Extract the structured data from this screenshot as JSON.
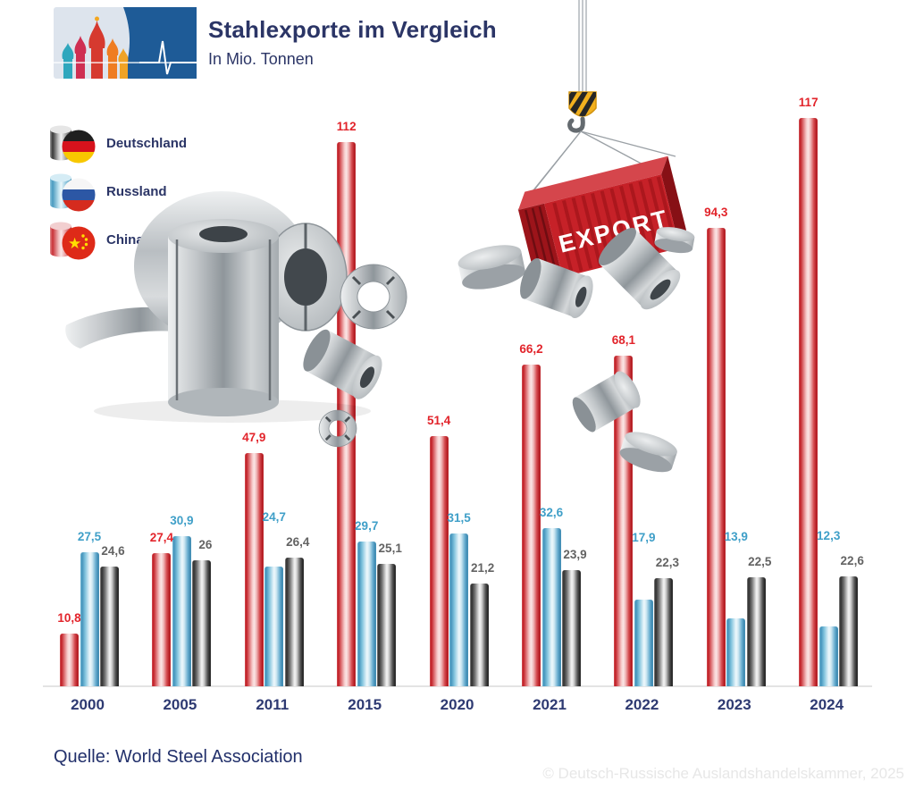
{
  "header": {
    "title": "Stahlexporte im Vergleich",
    "subtitle": "In Mio. Tonnen",
    "logo_icon": "st-basils-cathedral-with-pulse-line-icon"
  },
  "legend": {
    "items": [
      {
        "label": "Deutschland",
        "icon": "germany-flag-icon",
        "cylinder_color": "#58595b"
      },
      {
        "label": "Russland",
        "icon": "russia-flag-icon",
        "cylinder_color": "#45a1c8"
      },
      {
        "label": "China",
        "icon": "china-flag-icon",
        "cylinder_color": "#e2242b"
      }
    ]
  },
  "chart_data": {
    "type": "bar",
    "title": "Stahlexporte im Vergleich",
    "subtitle": "In Mio. Tonnen",
    "unit": "Mio. Tonnen",
    "categories": [
      "2000",
      "2005",
      "2011",
      "2015",
      "2020",
      "2021",
      "2022",
      "2023",
      "2024"
    ],
    "series": [
      {
        "name": "China",
        "key": "china",
        "color": "#e2242b",
        "values": [
          10.8,
          27.4,
          47.9,
          112,
          51.4,
          66.2,
          68.1,
          94.3,
          117
        ],
        "labels": [
          "10,8",
          "27,4",
          "47,9",
          "112",
          "51,4",
          "66,2",
          "68,1",
          "94,3",
          "117"
        ]
      },
      {
        "name": "Russland",
        "key": "russia",
        "color": "#45a1c8",
        "values": [
          27.5,
          30.9,
          24.7,
          29.7,
          31.5,
          32.6,
          17.9,
          13.9,
          12.3
        ],
        "labels": [
          "27,5",
          "30,9",
          "24,7",
          "29,7",
          "31,5",
          "32,6",
          "17,9",
          "13,9",
          "12,3"
        ]
      },
      {
        "name": "Deutschland",
        "key": "germany",
        "color": "#58595b",
        "values": [
          24.6,
          26,
          26.4,
          25.1,
          21.2,
          23.9,
          22.3,
          22.5,
          22.6
        ],
        "labels": [
          "24,6",
          "26",
          "26,4",
          "25,1",
          "21,2",
          "23,9",
          "22,3",
          "22,5",
          "22,6"
        ]
      }
    ],
    "ylim": [
      0,
      120
    ],
    "grid": false,
    "legend_position": "top-left",
    "year_label_color": "#2e3a72"
  },
  "illustration": {
    "container_text": "EXPORT"
  },
  "footer": {
    "source": "Quelle: World Steel Association",
    "copyright": "© Deutsch-Russische Auslandshandelskammer, 2025"
  }
}
